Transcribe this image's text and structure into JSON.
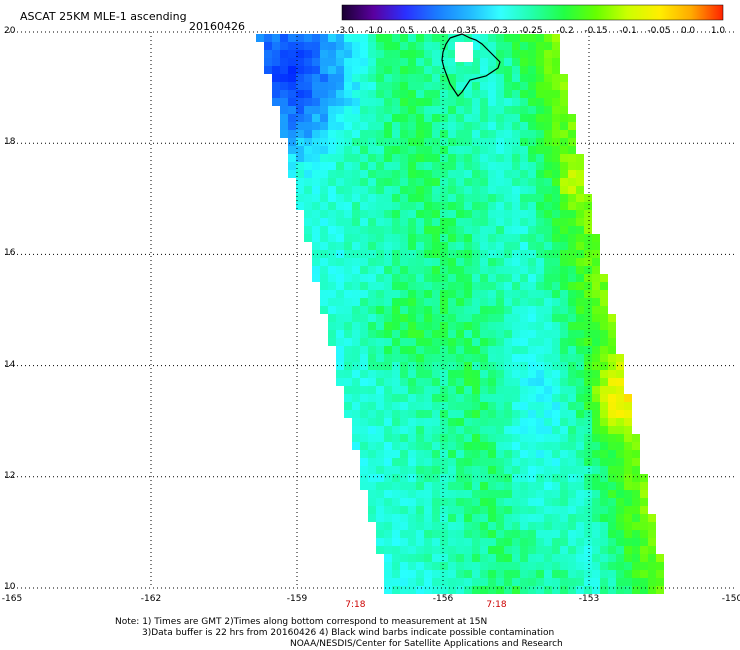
{
  "header": {
    "title": "ASCAT 25KM MLE-1 ascending",
    "date": "20160426"
  },
  "colorbar": {
    "labels": [
      "-3.0",
      "-1.0",
      "-0.5",
      "-0.4",
      "-0.35",
      "-0.3",
      "-0.25",
      "-0.2",
      "-0.15",
      "-0.1",
      "-0.05",
      "0.0",
      "1.0"
    ],
    "stops": [
      "#1a0030",
      "#5a00a0",
      "#2a30ff",
      "#1a7cff",
      "#22b8ff",
      "#33ffff",
      "#22ffaa",
      "#22ff44",
      "#66ff00",
      "#ccff00",
      "#ffee00",
      "#ffaa00",
      "#ff2200"
    ]
  },
  "map": {
    "lat_labels": [
      "20",
      "18",
      "16",
      "14",
      "12",
      "10"
    ],
    "lon_labels": [
      "-165",
      "-162",
      "-159",
      "-156",
      "-153",
      "-150"
    ],
    "lat_range": [
      10,
      20
    ],
    "lon_range": [
      -165,
      -150
    ],
    "grid": "dotted",
    "swath_value_range": [
      -0.4,
      0.0
    ],
    "time_labels": [
      "7:18",
      "7:18"
    ],
    "time_label_lons": [
      -157.8,
      -154.9
    ],
    "island": "Hawaii (Big Island) outline"
  },
  "footer": {
    "line1": "Note: 1) Times are GMT 2)Times along bottom correspond to measurement at 15N",
    "line2": "3)Data buffer is 22 hrs from 20160426 4) Black wind barbs indicate possible contamination",
    "line3": "NOAA/NESDIS/Center for Satellite Applications and Research"
  }
}
